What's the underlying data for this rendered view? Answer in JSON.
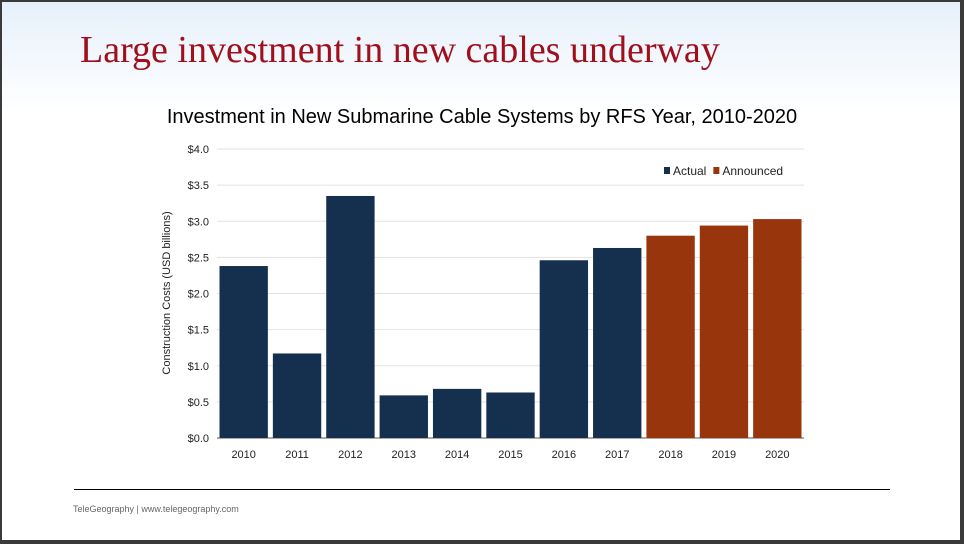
{
  "slide": {
    "title": "Large investment in new cables underway",
    "footer": "TeleGeography | www.telegeography.com"
  },
  "chart_data": {
    "type": "bar",
    "title": "Investment in New Submarine Cable Systems by RFS Year, 2010-2020",
    "xlabel": "",
    "ylabel": "Construction Costs (USD billions)",
    "ylim": [
      0,
      4.0
    ],
    "yticks": [
      "$0.0",
      "$0.5",
      "$1.0",
      "$1.5",
      "$2.0",
      "$2.5",
      "$3.0",
      "$3.5",
      "$4.0"
    ],
    "grid": true,
    "legend_placement": "top-right",
    "categories": [
      "2010",
      "2011",
      "2012",
      "2013",
      "2014",
      "2015",
      "2016",
      "2017",
      "2018",
      "2019",
      "2020"
    ],
    "values": [
      2.38,
      1.17,
      3.35,
      0.59,
      0.68,
      0.63,
      2.46,
      2.63,
      2.8,
      2.94,
      3.03
    ],
    "status": [
      "Actual",
      "Actual",
      "Actual",
      "Actual",
      "Actual",
      "Actual",
      "Actual",
      "Actual",
      "Announced",
      "Announced",
      "Announced"
    ],
    "legend": [
      {
        "name": "Actual",
        "color": "#15304f"
      },
      {
        "name": "Announced",
        "color": "#99350d"
      }
    ]
  }
}
